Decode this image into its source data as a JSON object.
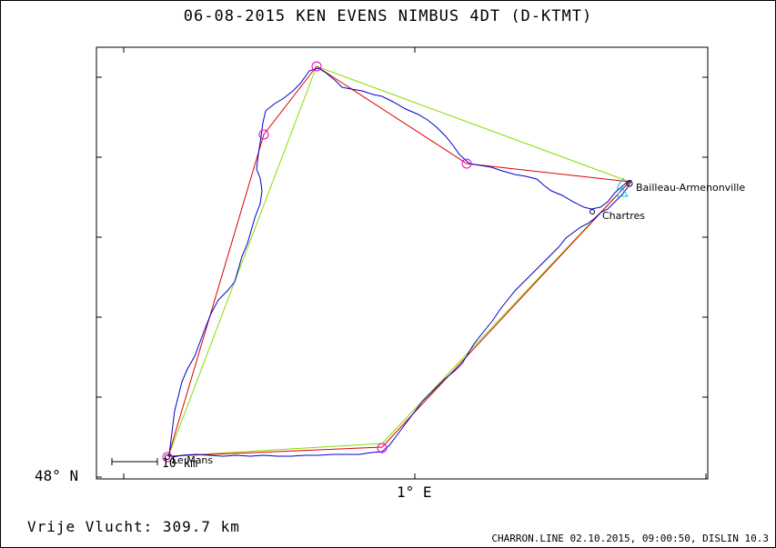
{
  "header": {
    "title": "06-08-2015    KEN EVENS    NIMBUS 4DT (D-KTMT)"
  },
  "axes": {
    "lat_label": "48° N",
    "lon_label": "1° E"
  },
  "places": [
    {
      "name": "Bailleau-Armenonville"
    },
    {
      "name": "Chartres"
    },
    {
      "name": "Le Mans"
    }
  ],
  "scale": {
    "label": "10 km"
  },
  "footer": {
    "distance": "Vrije Vlucht:  309.7 km",
    "credits": "CHARRON.LINE 02.10.2015, 09:00:50, DISLIN 10.3"
  },
  "colors": {
    "track": "#0000cc",
    "task_red": "#dd0000",
    "task_green": "#88dd00",
    "turnpoint": "#dd00dd",
    "start_marker": "#00bbdd"
  }
}
